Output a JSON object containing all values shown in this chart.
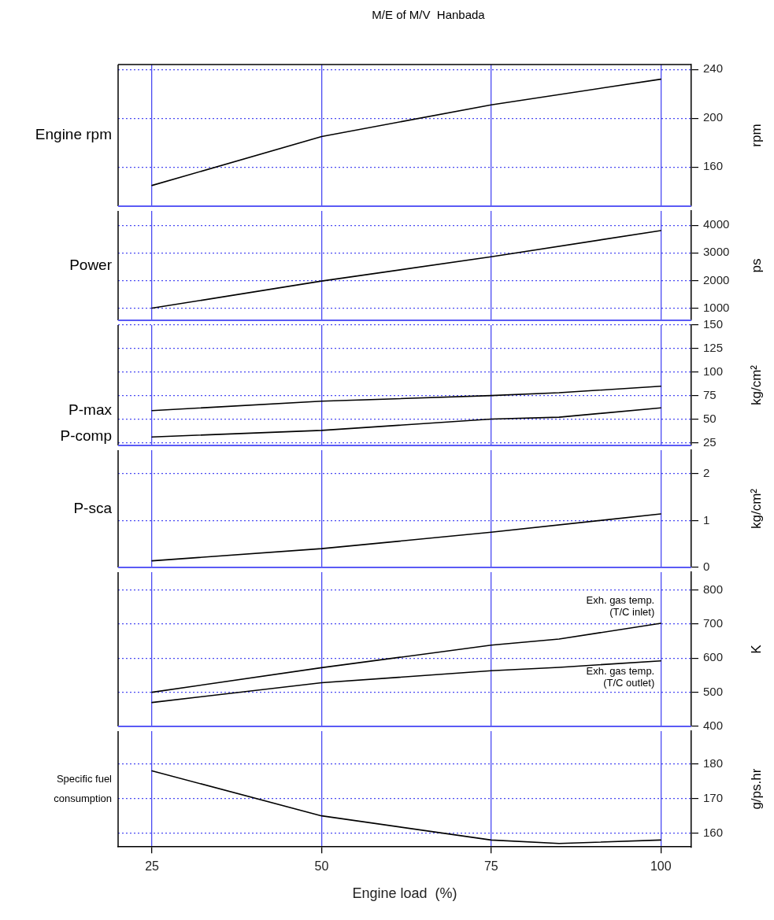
{
  "chart_data": [
    {
      "type": "line",
      "title": "M/E of M/V  Hanbada",
      "ylabel": "rpm",
      "xlim": [
        20,
        104.5
      ],
      "xticks": [
        25,
        50,
        75,
        100
      ],
      "ylim": [
        128,
        244
      ],
      "yticks": [
        160,
        200,
        240
      ],
      "grid": true,
      "legend": false,
      "tick_labels": "y",
      "series": [
        {
          "name": "Engine rpm",
          "color": "#000000",
          "x": [
            25,
            50,
            75,
            100
          ],
          "values": [
            145,
            185,
            211,
            232
          ]
        }
      ]
    },
    {
      "type": "line",
      "ylabel": "ps",
      "xlim": [
        20,
        104.5
      ],
      "xticks": [
        25,
        50,
        75,
        100
      ],
      "ylim": [
        560,
        4520
      ],
      "yticks": [
        1000,
        2000,
        3000,
        4000
      ],
      "grid": true,
      "legend": false,
      "tick_labels": "y",
      "series": [
        {
          "name": "Power",
          "color": "#000000",
          "x": [
            25,
            50,
            75,
            100
          ],
          "values": [
            1000,
            1980,
            2860,
            3810
          ]
        }
      ]
    },
    {
      "type": "line",
      "ylabel": "kg/cm²",
      "xlim": [
        20,
        104.5
      ],
      "xticks": [
        25,
        50,
        75,
        100
      ],
      "ylim": [
        22,
        150
      ],
      "yticks": [
        25,
        50,
        75,
        100,
        125,
        150
      ],
      "grid": true,
      "legend": false,
      "tick_labels": "y",
      "series": [
        {
          "name": "P-max",
          "color": "#000000",
          "x": [
            25,
            50,
            75,
            85,
            100
          ],
          "values": [
            59,
            69,
            75,
            78,
            85
          ]
        },
        {
          "name": "P-comp",
          "color": "#000000",
          "x": [
            25,
            50,
            75,
            85,
            100
          ],
          "values": [
            31,
            38,
            50,
            52,
            62
          ]
        }
      ]
    },
    {
      "type": "line",
      "ylabel": "kg/cm²",
      "xlim": [
        20,
        104.5
      ],
      "xticks": [
        25,
        50,
        75,
        100
      ],
      "ylim": [
        0,
        2.5
      ],
      "yticks": [
        0,
        1,
        2
      ],
      "grid": true,
      "legend": false,
      "tick_labels": "y",
      "series": [
        {
          "name": "P-sca",
          "color": "#000000",
          "x": [
            25,
            50,
            75,
            100
          ],
          "values": [
            0.14,
            0.4,
            0.75,
            1.14
          ]
        }
      ]
    },
    {
      "type": "line",
      "ylabel": "K",
      "xlim": [
        20,
        104.5
      ],
      "xticks": [
        25,
        50,
        75,
        100
      ],
      "ylim": [
        400,
        852
      ],
      "yticks": [
        400,
        500,
        600,
        700,
        800
      ],
      "grid": true,
      "legend": false,
      "tick_labels": "y",
      "series": [
        {
          "name": "Exh. gas temp. (T/C inlet)",
          "color": "#000000",
          "x": [
            25,
            50,
            75,
            85,
            100
          ],
          "values": [
            500,
            572,
            638,
            656,
            702
          ]
        },
        {
          "name": "Exh. gas temp. (T/C outlet)",
          "color": "#000000",
          "x": [
            25,
            50,
            75,
            85,
            100
          ],
          "values": [
            470,
            528,
            563,
            573,
            592
          ]
        }
      ]
    },
    {
      "type": "line",
      "ylabel": "g/ps.hr",
      "xlabel": "Engine load  (%)",
      "xlim": [
        20,
        104.5
      ],
      "xticks": [
        25,
        50,
        75,
        100
      ],
      "ylim": [
        156,
        189.5
      ],
      "yticks": [
        160,
        170,
        180
      ],
      "grid": true,
      "legend": false,
      "series": [
        {
          "name": "Specific fuel consumption",
          "color": "#000000",
          "x": [
            25,
            50,
            75,
            85,
            100
          ],
          "values": [
            178,
            165,
            158,
            157,
            158
          ]
        }
      ]
    }
  ]
}
